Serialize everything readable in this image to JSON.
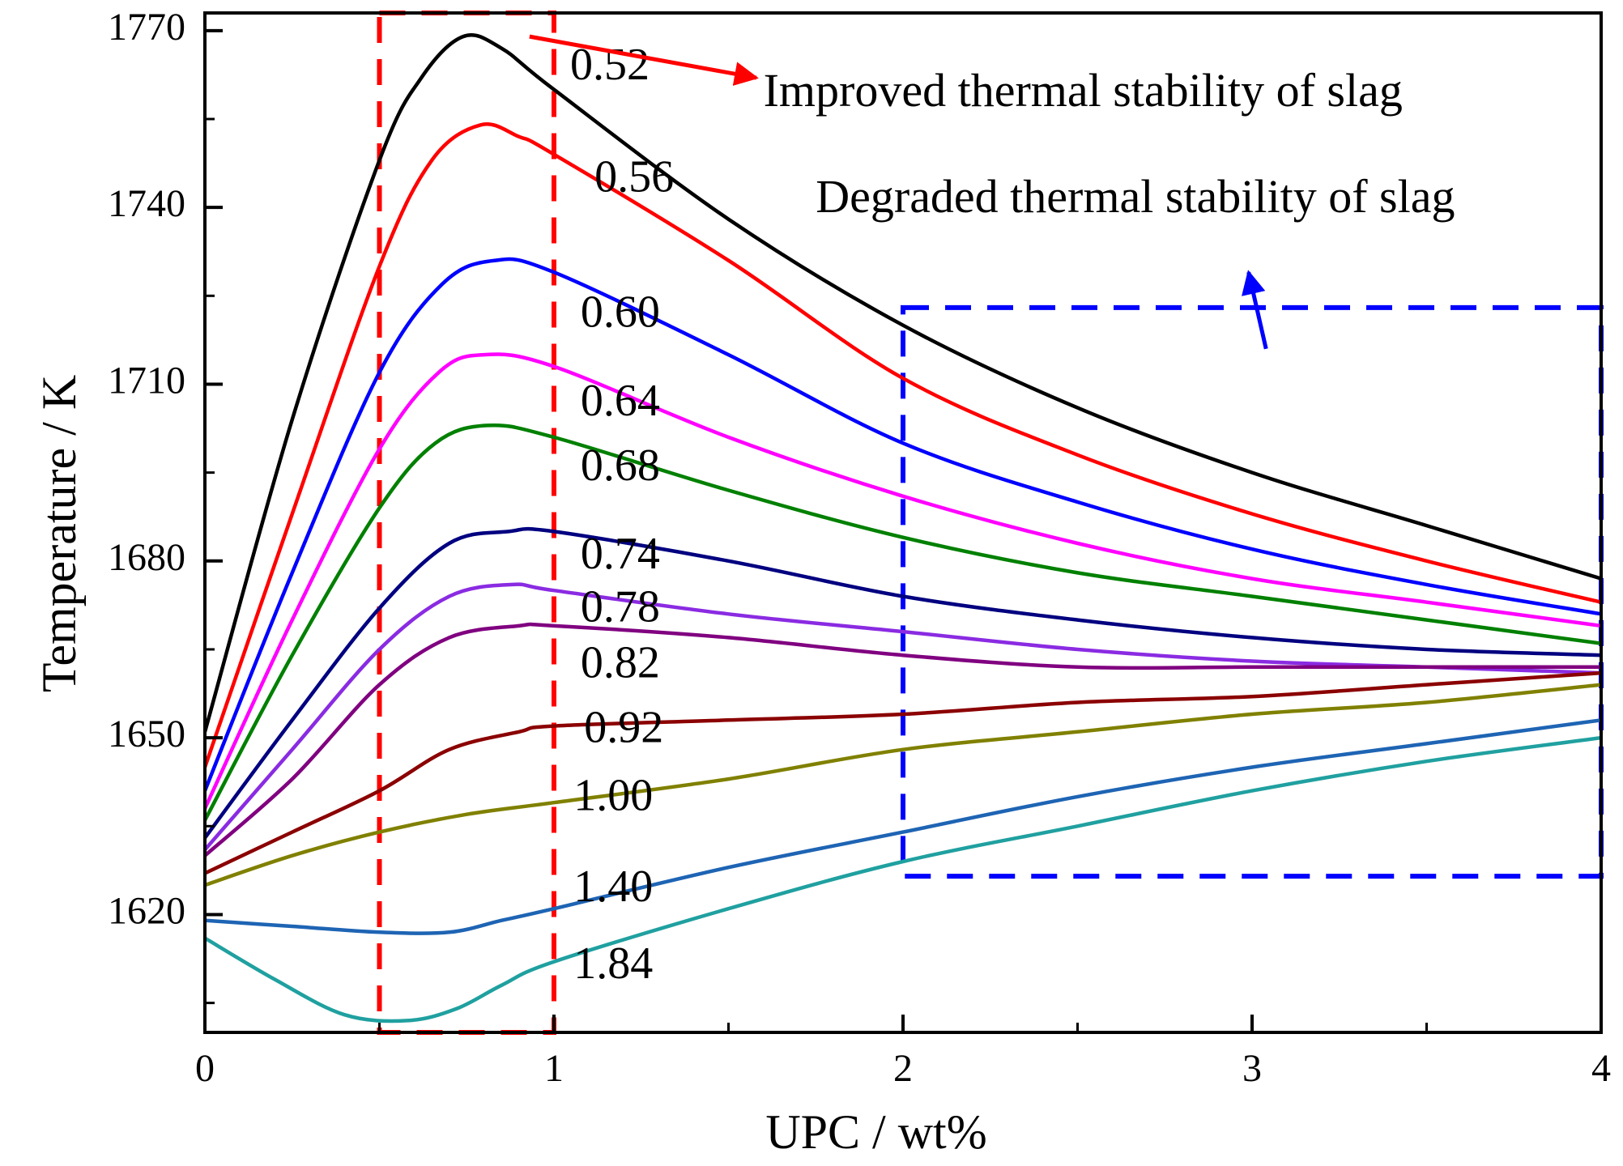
{
  "chart_data": {
    "type": "line",
    "title": "",
    "xlabel": "UPC / wt%",
    "ylabel": "Temperature / K",
    "xlim": [
      0,
      4
    ],
    "ylim": [
      1600,
      1773
    ],
    "x_ticks": [
      0,
      1,
      2,
      3,
      4
    ],
    "x_minor_ticks": [
      0.5,
      1.5,
      2.5,
      3.5
    ],
    "y_ticks": [
      1620,
      1650,
      1680,
      1710,
      1740,
      1770
    ],
    "y_minor_ticks": [
      1605,
      1635,
      1665,
      1695,
      1725,
      1755
    ],
    "grid": false,
    "legend": "none",
    "series": [
      {
        "label": "0.52",
        "color": "#000000",
        "label_at": [
          1.16,
          1763.5
        ],
        "points": [
          [
            0,
            1651
          ],
          [
            0.25,
            1704
          ],
          [
            0.5,
            1748
          ],
          [
            0.62,
            1762
          ],
          [
            0.74,
            1769
          ],
          [
            0.85,
            1767
          ],
          [
            1.0,
            1760
          ],
          [
            1.5,
            1738
          ],
          [
            2.0,
            1720
          ],
          [
            2.5,
            1706
          ],
          [
            3.0,
            1695
          ],
          [
            3.5,
            1686
          ],
          [
            4.0,
            1677
          ]
        ]
      },
      {
        "label": "0.56",
        "color": "#ff0000",
        "label_at": [
          1.23,
          1744.5
        ],
        "points": [
          [
            0,
            1645
          ],
          [
            0.25,
            1688
          ],
          [
            0.5,
            1730
          ],
          [
            0.65,
            1748
          ],
          [
            0.79,
            1754
          ],
          [
            0.9,
            1752
          ],
          [
            1.0,
            1749
          ],
          [
            1.5,
            1731
          ],
          [
            2.0,
            1711
          ],
          [
            2.5,
            1698
          ],
          [
            3.0,
            1688
          ],
          [
            3.5,
            1680
          ],
          [
            4.0,
            1673
          ]
        ]
      },
      {
        "label": "0.60",
        "color": "#0000ff",
        "label_at": [
          1.19,
          1721.5
        ],
        "points": [
          [
            0,
            1641
          ],
          [
            0.25,
            1678
          ],
          [
            0.5,
            1712
          ],
          [
            0.68,
            1727
          ],
          [
            0.83,
            1731
          ],
          [
            1.0,
            1729
          ],
          [
            1.5,
            1715
          ],
          [
            2.0,
            1700
          ],
          [
            2.5,
            1690
          ],
          [
            3.0,
            1682
          ],
          [
            3.5,
            1676
          ],
          [
            4.0,
            1671
          ]
        ]
      },
      {
        "label": "0.64",
        "color": "#ff00ff",
        "label_at": [
          1.19,
          1706.5
        ],
        "points": [
          [
            0,
            1638
          ],
          [
            0.25,
            1670
          ],
          [
            0.5,
            1699
          ],
          [
            0.67,
            1712
          ],
          [
            0.8,
            1715
          ],
          [
            1.0,
            1713
          ],
          [
            1.5,
            1701
          ],
          [
            2.0,
            1691
          ],
          [
            2.5,
            1683
          ],
          [
            3.0,
            1677
          ],
          [
            3.5,
            1673
          ],
          [
            4.0,
            1669
          ]
        ]
      },
      {
        "label": "0.68",
        "color": "#008000",
        "label_at": [
          1.19,
          1695.5
        ],
        "points": [
          [
            0,
            1636
          ],
          [
            0.25,
            1664
          ],
          [
            0.5,
            1689
          ],
          [
            0.66,
            1700
          ],
          [
            0.81,
            1703
          ],
          [
            1.0,
            1701
          ],
          [
            1.5,
            1692
          ],
          [
            2.0,
            1684
          ],
          [
            2.5,
            1678
          ],
          [
            3.0,
            1674
          ],
          [
            3.5,
            1670
          ],
          [
            4.0,
            1666
          ]
        ]
      },
      {
        "label": "0.74",
        "color": "#000080",
        "label_at": [
          1.19,
          1680.5
        ],
        "points": [
          [
            0,
            1633
          ],
          [
            0.25,
            1653
          ],
          [
            0.5,
            1672
          ],
          [
            0.7,
            1683
          ],
          [
            0.87,
            1685
          ],
          [
            1.0,
            1685
          ],
          [
            1.5,
            1680
          ],
          [
            2.0,
            1674
          ],
          [
            2.5,
            1670
          ],
          [
            3.0,
            1667
          ],
          [
            3.5,
            1665
          ],
          [
            4.0,
            1664
          ]
        ]
      },
      {
        "label": "0.78",
        "color": "#8a2be2",
        "label_at": [
          1.19,
          1671.5
        ],
        "points": [
          [
            0,
            1631
          ],
          [
            0.25,
            1648
          ],
          [
            0.5,
            1665
          ],
          [
            0.7,
            1674
          ],
          [
            0.88,
            1676
          ],
          [
            1.0,
            1675
          ],
          [
            1.5,
            1671
          ],
          [
            2.0,
            1668
          ],
          [
            2.5,
            1665
          ],
          [
            3.0,
            1663
          ],
          [
            3.5,
            1662
          ],
          [
            4.0,
            1661
          ]
        ]
      },
      {
        "label": "0.82",
        "color": "#800080",
        "label_at": [
          1.19,
          1662
        ],
        "points": [
          [
            0,
            1630
          ],
          [
            0.25,
            1643
          ],
          [
            0.5,
            1659
          ],
          [
            0.7,
            1667
          ],
          [
            0.9,
            1669
          ],
          [
            1.0,
            1669
          ],
          [
            1.5,
            1667
          ],
          [
            2.0,
            1664
          ],
          [
            2.5,
            1662
          ],
          [
            3.0,
            1662
          ],
          [
            3.5,
            1662
          ],
          [
            4.0,
            1662
          ]
        ]
      },
      {
        "label": "0.92",
        "color": "#8b0000",
        "label_at": [
          1.2,
          1651
        ],
        "points": [
          [
            0,
            1627
          ],
          [
            0.25,
            1634
          ],
          [
            0.5,
            1641
          ],
          [
            0.7,
            1648
          ],
          [
            0.9,
            1651
          ],
          [
            1.0,
            1652
          ],
          [
            1.5,
            1653
          ],
          [
            2.0,
            1654
          ],
          [
            2.5,
            1656
          ],
          [
            3.0,
            1657
          ],
          [
            3.5,
            1659
          ],
          [
            4.0,
            1661
          ]
        ]
      },
      {
        "label": "1.00",
        "color": "#808000",
        "label_at": [
          1.17,
          1639.5
        ],
        "points": [
          [
            0,
            1625
          ],
          [
            0.25,
            1630
          ],
          [
            0.5,
            1634
          ],
          [
            0.75,
            1637
          ],
          [
            1.0,
            1639
          ],
          [
            1.5,
            1643
          ],
          [
            2.0,
            1648
          ],
          [
            2.5,
            1651
          ],
          [
            3.0,
            1654
          ],
          [
            3.5,
            1656
          ],
          [
            4.0,
            1659
          ]
        ]
      },
      {
        "label": "1.40",
        "color": "#1e64b4",
        "label_at": [
          1.17,
          1624
        ],
        "points": [
          [
            0,
            1619
          ],
          [
            0.25,
            1618
          ],
          [
            0.5,
            1617
          ],
          [
            0.7,
            1617
          ],
          [
            0.85,
            1619
          ],
          [
            1.0,
            1621
          ],
          [
            1.5,
            1628
          ],
          [
            2.0,
            1634
          ],
          [
            2.5,
            1640
          ],
          [
            3.0,
            1645
          ],
          [
            3.5,
            1649
          ],
          [
            4.0,
            1653
          ]
        ]
      },
      {
        "label": "1.84",
        "color": "#20a0a0",
        "label_at": [
          1.17,
          1611
        ],
        "points": [
          [
            0,
            1616
          ],
          [
            0.2,
            1609
          ],
          [
            0.4,
            1603
          ],
          [
            0.58,
            1602
          ],
          [
            0.72,
            1604
          ],
          [
            0.85,
            1608
          ],
          [
            1.0,
            1612
          ],
          [
            1.5,
            1621
          ],
          [
            2.0,
            1629
          ],
          [
            2.5,
            1635
          ],
          [
            3.0,
            1641
          ],
          [
            3.5,
            1646
          ],
          [
            4.0,
            1650
          ]
        ]
      }
    ],
    "regions": [
      {
        "color": "#ff0000",
        "x_range": [
          0.5,
          1.0
        ],
        "y_range": [
          1600,
          1773
        ]
      },
      {
        "color": "#0000ff",
        "x_range": [
          2.0,
          4.0
        ],
        "y_range": [
          1626.5,
          1723
        ]
      }
    ],
    "annotations": [
      {
        "text": "Improved thermal stability of slag",
        "color": "#ff0000",
        "text_at": [
          1.6,
          1759
        ],
        "arrow_from": [
          0.93,
          1769
        ],
        "arrow_to": [
          1.58,
          1762
        ]
      },
      {
        "text": "Degraded thermal stability of slag",
        "color": "#0000ff",
        "text_at": [
          1.75,
          1741
        ],
        "arrow_from": [
          3.04,
          1716
        ],
        "arrow_to": [
          2.99,
          1729
        ]
      }
    ]
  }
}
